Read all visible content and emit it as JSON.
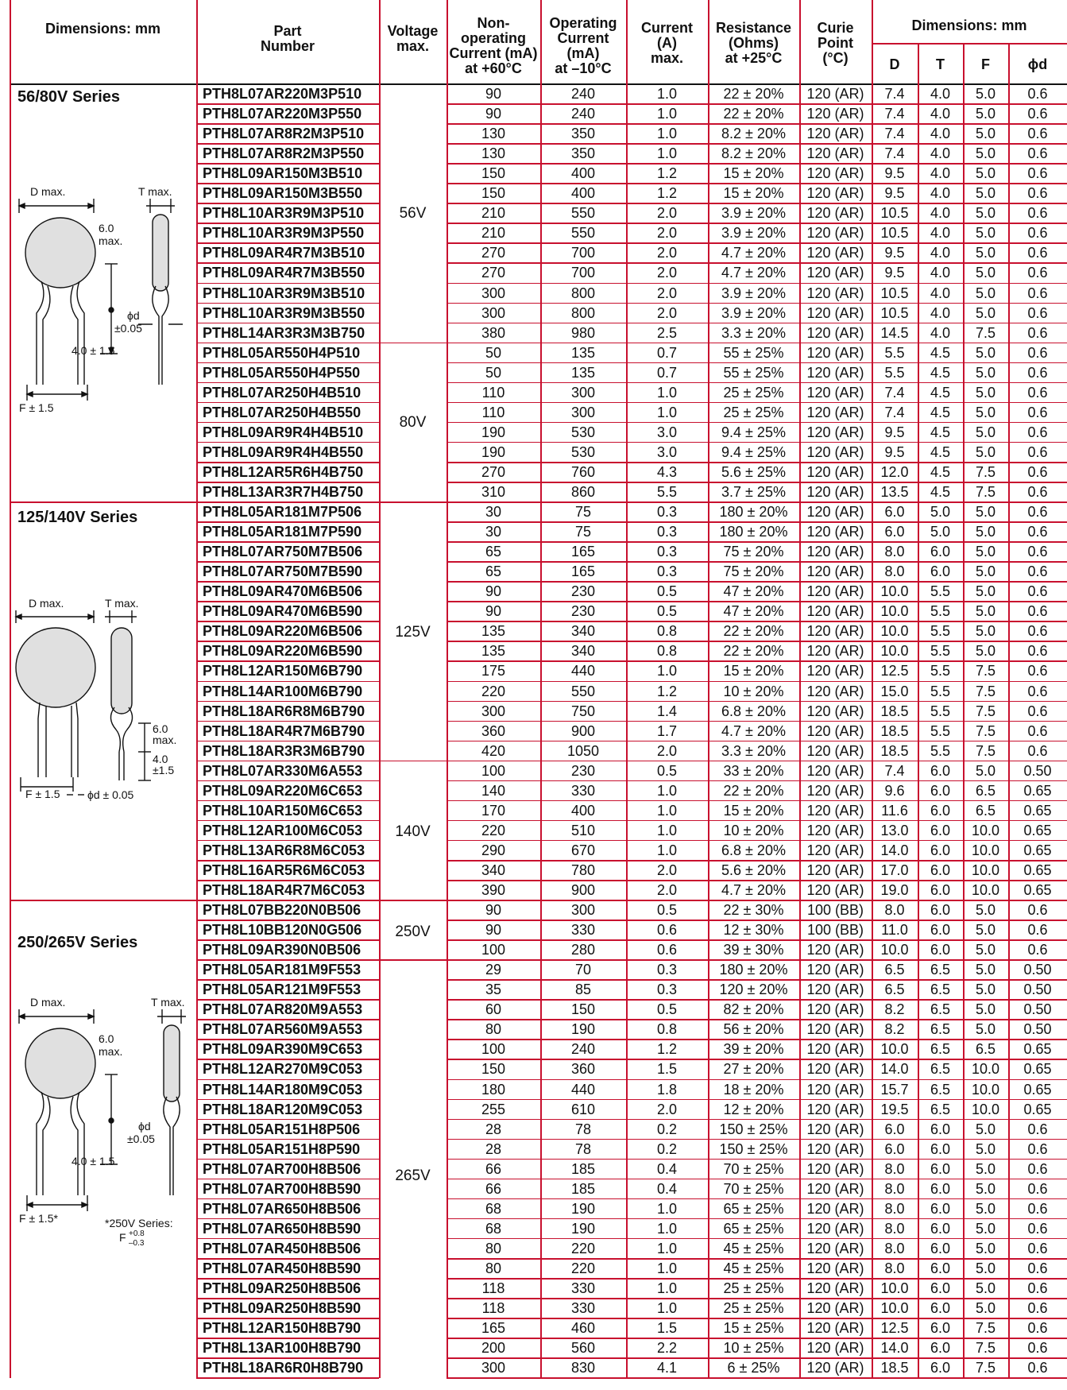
{
  "header": {
    "dimensions_left": "Dimensions: mm",
    "part_number": [
      "Part",
      "Number"
    ],
    "voltage": [
      "Voltage",
      "max."
    ],
    "non_operating": [
      "Non-",
      "operating",
      "Current (mA)",
      "at +60°C"
    ],
    "operating": [
      "Operating",
      "Current",
      "(mA)",
      "at –10°C"
    ],
    "current": [
      "Current",
      "(A)",
      "max."
    ],
    "resistance": [
      "Resistance",
      "(Ohms)",
      "at +25°C"
    ],
    "curie": [
      "Curie",
      "Point",
      "(°C)"
    ],
    "dimensions_right": "Dimensions: mm",
    "dim_cols": [
      "D",
      "T",
      "F",
      "ϕd"
    ]
  },
  "series_labels": [
    "56/80V Series",
    "125/140V Series",
    "250/265V Series"
  ],
  "voltage_groups": [
    "56V",
    "80V",
    "125V",
    "140V",
    "250V",
    "265V"
  ],
  "diagram_labels": {
    "d_max": "D max.",
    "t_max": "T max.",
    "six_max_a": "6.0",
    "six_max_b": "max.",
    "phi_d": "ϕd",
    "pm005": "±0.05",
    "four_pm": "4.0 ± 1.5",
    "four": "4.0",
    "pm15": "±1.5",
    "f_pm": "F ± 1.5",
    "f_pm_star": "F ± 1.5*",
    "phid_pm": "ϕd ± 0.05",
    "note_a": "*250V Series:",
    "note_f": "F",
    "note_sup": "+0.8",
    "note_sub": "–0.3"
  },
  "rows": [
    [
      "PTH8L07AR220M3P510",
      "90",
      "240",
      "1.0",
      "22 ± 20%",
      "120 (AR)",
      "7.4",
      "4.0",
      "5.0",
      "0.6"
    ],
    [
      "PTH8L07AR220M3P550",
      "90",
      "240",
      "1.0",
      "22 ± 20%",
      "120 (AR)",
      "7.4",
      "4.0",
      "5.0",
      "0.6"
    ],
    [
      "PTH8L07AR8R2M3P510",
      "130",
      "350",
      "1.0",
      "8.2 ± 20%",
      "120 (AR)",
      "7.4",
      "4.0",
      "5.0",
      "0.6"
    ],
    [
      "PTH8L07AR8R2M3P550",
      "130",
      "350",
      "1.0",
      "8.2 ± 20%",
      "120 (AR)",
      "7.4",
      "4.0",
      "5.0",
      "0.6"
    ],
    [
      "PTH8L09AR150M3B510",
      "150",
      "400",
      "1.2",
      "15 ± 20%",
      "120 (AR)",
      "9.5",
      "4.0",
      "5.0",
      "0.6"
    ],
    [
      "PTH8L09AR150M3B550",
      "150",
      "400",
      "1.2",
      "15 ± 20%",
      "120 (AR)",
      "9.5",
      "4.0",
      "5.0",
      "0.6"
    ],
    [
      "PTH8L10AR3R9M3P510",
      "210",
      "550",
      "2.0",
      "3.9 ± 20%",
      "120 (AR)",
      "10.5",
      "4.0",
      "5.0",
      "0.6"
    ],
    [
      "PTH8L10AR3R9M3P550",
      "210",
      "550",
      "2.0",
      "3.9 ± 20%",
      "120 (AR)",
      "10.5",
      "4.0",
      "5.0",
      "0.6"
    ],
    [
      "PTH8L09AR4R7M3B510",
      "270",
      "700",
      "2.0",
      "4.7 ± 20%",
      "120 (AR)",
      "9.5",
      "4.0",
      "5.0",
      "0.6"
    ],
    [
      "PTH8L09AR4R7M3B550",
      "270",
      "700",
      "2.0",
      "4.7 ± 20%",
      "120 (AR)",
      "9.5",
      "4.0",
      "5.0",
      "0.6"
    ],
    [
      "PTH8L10AR3R9M3B510",
      "300",
      "800",
      "2.0",
      "3.9 ± 20%",
      "120 (AR)",
      "10.5",
      "4.0",
      "5.0",
      "0.6"
    ],
    [
      "PTH8L10AR3R9M3B550",
      "300",
      "800",
      "2.0",
      "3.9 ± 20%",
      "120 (AR)",
      "10.5",
      "4.0",
      "5.0",
      "0.6"
    ],
    [
      "PTH8L14AR3R3M3B750",
      "380",
      "980",
      "2.5",
      "3.3 ± 20%",
      "120 (AR)",
      "14.5",
      "4.0",
      "7.5",
      "0.6"
    ],
    [
      "PTH8L05AR550H4P510",
      "50",
      "135",
      "0.7",
      "55 ± 25%",
      "120 (AR)",
      "5.5",
      "4.5",
      "5.0",
      "0.6"
    ],
    [
      "PTH8L05AR550H4P550",
      "50",
      "135",
      "0.7",
      "55 ± 25%",
      "120 (AR)",
      "5.5",
      "4.5",
      "5.0",
      "0.6"
    ],
    [
      "PTH8L07AR250H4B510",
      "110",
      "300",
      "1.0",
      "25 ± 25%",
      "120 (AR)",
      "7.4",
      "4.5",
      "5.0",
      "0.6"
    ],
    [
      "PTH8L07AR250H4B550",
      "110",
      "300",
      "1.0",
      "25 ± 25%",
      "120 (AR)",
      "7.4",
      "4.5",
      "5.0",
      "0.6"
    ],
    [
      "PTH8L09AR9R4H4B510",
      "190",
      "530",
      "3.0",
      "9.4 ± 25%",
      "120 (AR)",
      "9.5",
      "4.5",
      "5.0",
      "0.6"
    ],
    [
      "PTH8L09AR9R4H4B550",
      "190",
      "530",
      "3.0",
      "9.4 ± 25%",
      "120 (AR)",
      "9.5",
      "4.5",
      "5.0",
      "0.6"
    ],
    [
      "PTH8L12AR5R6H4B750",
      "270",
      "760",
      "4.3",
      "5.6 ± 25%",
      "120 (AR)",
      "12.0",
      "4.5",
      "7.5",
      "0.6"
    ],
    [
      "PTH8L13AR3R7H4B750",
      "310",
      "860",
      "5.5",
      "3.7 ± 25%",
      "120 (AR)",
      "13.5",
      "4.5",
      "7.5",
      "0.6"
    ],
    [
      "PTH8L05AR181M7P506",
      "30",
      "75",
      "0.3",
      "180 ± 20%",
      "120 (AR)",
      "6.0",
      "5.0",
      "5.0",
      "0.6"
    ],
    [
      "PTH8L05AR181M7P590",
      "30",
      "75",
      "0.3",
      "180 ± 20%",
      "120 (AR)",
      "6.0",
      "5.0",
      "5.0",
      "0.6"
    ],
    [
      "PTH8L07AR750M7B506",
      "65",
      "165",
      "0.3",
      "75 ± 20%",
      "120 (AR)",
      "8.0",
      "6.0",
      "5.0",
      "0.6"
    ],
    [
      "PTH8L07AR750M7B590",
      "65",
      "165",
      "0.3",
      "75 ± 20%",
      "120 (AR)",
      "8.0",
      "6.0",
      "5.0",
      "0.6"
    ],
    [
      "PTH8L09AR470M6B506",
      "90",
      "230",
      "0.5",
      "47 ± 20%",
      "120 (AR)",
      "10.0",
      "5.5",
      "5.0",
      "0.6"
    ],
    [
      "PTH8L09AR470M6B590",
      "90",
      "230",
      "0.5",
      "47 ± 20%",
      "120 (AR)",
      "10.0",
      "5.5",
      "5.0",
      "0.6"
    ],
    [
      "PTH8L09AR220M6B506",
      "135",
      "340",
      "0.8",
      "22 ± 20%",
      "120 (AR)",
      "10.0",
      "5.5",
      "5.0",
      "0.6"
    ],
    [
      "PTH8L09AR220M6B590",
      "135",
      "340",
      "0.8",
      "22 ± 20%",
      "120 (AR)",
      "10.0",
      "5.5",
      "5.0",
      "0.6"
    ],
    [
      "PTH8L12AR150M6B790",
      "175",
      "440",
      "1.0",
      "15 ± 20%",
      "120 (AR)",
      "12.5",
      "5.5",
      "7.5",
      "0.6"
    ],
    [
      "PTH8L14AR100M6B790",
      "220",
      "550",
      "1.2",
      "10 ± 20%",
      "120 (AR)",
      "15.0",
      "5.5",
      "7.5",
      "0.6"
    ],
    [
      "PTH8L18AR6R8M6B790",
      "300",
      "750",
      "1.4",
      "6.8 ± 20%",
      "120 (AR)",
      "18.5",
      "5.5",
      "7.5",
      "0.6"
    ],
    [
      "PTH8L18AR4R7M6B790",
      "360",
      "900",
      "1.7",
      "4.7 ± 20%",
      "120 (AR)",
      "18.5",
      "5.5",
      "7.5",
      "0.6"
    ],
    [
      "PTH8L18AR3R3M6B790",
      "420",
      "1050",
      "2.0",
      "3.3 ± 20%",
      "120 (AR)",
      "18.5",
      "5.5",
      "7.5",
      "0.6"
    ],
    [
      "PTH8L07AR330M6A553",
      "100",
      "230",
      "0.5",
      "33 ± 20%",
      "120 (AR)",
      "7.4",
      "6.0",
      "5.0",
      "0.50"
    ],
    [
      "PTH8L09AR220M6C653",
      "140",
      "330",
      "1.0",
      "22 ± 20%",
      "120 (AR)",
      "9.6",
      "6.0",
      "6.5",
      "0.65"
    ],
    [
      "PTH8L10AR150M6C653",
      "170",
      "400",
      "1.0",
      "15 ± 20%",
      "120 (AR)",
      "11.6",
      "6.0",
      "6.5",
      "0.65"
    ],
    [
      "PTH8L12AR100M6C053",
      "220",
      "510",
      "1.0",
      "10 ± 20%",
      "120 (AR)",
      "13.0",
      "6.0",
      "10.0",
      "0.65"
    ],
    [
      "PTH8L13AR6R8M6C053",
      "290",
      "670",
      "1.0",
      "6.8 ± 20%",
      "120 (AR)",
      "14.0",
      "6.0",
      "10.0",
      "0.65"
    ],
    [
      "PTH8L16AR5R6M6C053",
      "340",
      "780",
      "2.0",
      "5.6 ± 20%",
      "120 (AR)",
      "17.0",
      "6.0",
      "10.0",
      "0.65"
    ],
    [
      "PTH8L18AR4R7M6C053",
      "390",
      "900",
      "2.0",
      "4.7 ± 20%",
      "120 (AR)",
      "19.0",
      "6.0",
      "10.0",
      "0.65"
    ],
    [
      "PTH8L07BB220N0B506",
      "90",
      "300",
      "0.5",
      "22 ± 30%",
      "100 (BB)",
      "8.0",
      "6.0",
      "5.0",
      "0.6"
    ],
    [
      "PTH8L10BB120N0G506",
      "90",
      "330",
      "0.6",
      "12 ± 30%",
      "100 (BB)",
      "11.0",
      "6.0",
      "5.0",
      "0.6"
    ],
    [
      "PTH8L09AR390N0B506",
      "100",
      "280",
      "0.6",
      "39 ± 30%",
      "120 (AR)",
      "10.0",
      "6.0",
      "5.0",
      "0.6"
    ],
    [
      "PTH8L05AR181M9F553",
      "29",
      "70",
      "0.3",
      "180 ± 20%",
      "120 (AR)",
      "6.5",
      "6.5",
      "5.0",
      "0.50"
    ],
    [
      "PTH8L05AR121M9F553",
      "35",
      "85",
      "0.3",
      "120 ± 20%",
      "120 (AR)",
      "6.5",
      "6.5",
      "5.0",
      "0.50"
    ],
    [
      "PTH8L07AR820M9A553",
      "60",
      "150",
      "0.5",
      "82 ± 20%",
      "120 (AR)",
      "8.2",
      "6.5",
      "5.0",
      "0.50"
    ],
    [
      "PTH8L07AR560M9A553",
      "80",
      "190",
      "0.8",
      "56 ± 20%",
      "120 (AR)",
      "8.2",
      "6.5",
      "5.0",
      "0.50"
    ],
    [
      "PTH8L09AR390M9C653",
      "100",
      "240",
      "1.2",
      "39 ± 20%",
      "120 (AR)",
      "10.0",
      "6.5",
      "6.5",
      "0.65"
    ],
    [
      "PTH8L12AR270M9C053",
      "150",
      "360",
      "1.5",
      "27 ± 20%",
      "120 (AR)",
      "14.0",
      "6.5",
      "10.0",
      "0.65"
    ],
    [
      "PTH8L14AR180M9C053",
      "180",
      "440",
      "1.8",
      "18 ± 20%",
      "120 (AR)",
      "15.7",
      "6.5",
      "10.0",
      "0.65"
    ],
    [
      "PTH8L18AR120M9C053",
      "255",
      "610",
      "2.0",
      "12 ± 20%",
      "120 (AR)",
      "19.5",
      "6.5",
      "10.0",
      "0.65"
    ],
    [
      "PTH8L05AR151H8P506",
      "28",
      "78",
      "0.2",
      "150 ± 25%",
      "120 (AR)",
      "6.0",
      "6.0",
      "5.0",
      "0.6"
    ],
    [
      "PTH8L05AR151H8P590",
      "28",
      "78",
      "0.2",
      "150 ± 25%",
      "120 (AR)",
      "6.0",
      "6.0",
      "5.0",
      "0.6"
    ],
    [
      "PTH8L07AR700H8B506",
      "66",
      "185",
      "0.4",
      "70 ± 25%",
      "120 (AR)",
      "8.0",
      "6.0",
      "5.0",
      "0.6"
    ],
    [
      "PTH8L07AR700H8B590",
      "66",
      "185",
      "0.4",
      "70 ± 25%",
      "120 (AR)",
      "8.0",
      "6.0",
      "5.0",
      "0.6"
    ],
    [
      "PTH8L07AR650H8B506",
      "68",
      "190",
      "1.0",
      "65 ± 25%",
      "120 (AR)",
      "8.0",
      "6.0",
      "5.0",
      "0.6"
    ],
    [
      "PTH8L07AR650H8B590",
      "68",
      "190",
      "1.0",
      "65 ± 25%",
      "120 (AR)",
      "8.0",
      "6.0",
      "5.0",
      "0.6"
    ],
    [
      "PTH8L07AR450H8B506",
      "80",
      "220",
      "1.0",
      "45 ± 25%",
      "120 (AR)",
      "8.0",
      "6.0",
      "5.0",
      "0.6"
    ],
    [
      "PTH8L07AR450H8B590",
      "80",
      "220",
      "1.0",
      "45 ± 25%",
      "120 (AR)",
      "8.0",
      "6.0",
      "5.0",
      "0.6"
    ],
    [
      "PTH8L09AR250H8B506",
      "118",
      "330",
      "1.0",
      "25 ± 25%",
      "120 (AR)",
      "10.0",
      "6.0",
      "5.0",
      "0.6"
    ],
    [
      "PTH8L09AR250H8B590",
      "118",
      "330",
      "1.0",
      "25 ± 25%",
      "120 (AR)",
      "10.0",
      "6.0",
      "5.0",
      "0.6"
    ],
    [
      "PTH8L12AR150H8B790",
      "165",
      "460",
      "1.5",
      "15 ± 25%",
      "120 (AR)",
      "12.5",
      "6.0",
      "7.5",
      "0.6"
    ],
    [
      "PTH8L13AR100H8B790",
      "200",
      "560",
      "2.2",
      "10 ± 25%",
      "120 (AR)",
      "14.0",
      "6.0",
      "7.5",
      "0.6"
    ],
    [
      "PTH8L18AR6R0H8B790",
      "300",
      "830",
      "4.1",
      "6 ± 25%",
      "120 (AR)",
      "18.5",
      "6.0",
      "7.5",
      "0.6"
    ]
  ]
}
